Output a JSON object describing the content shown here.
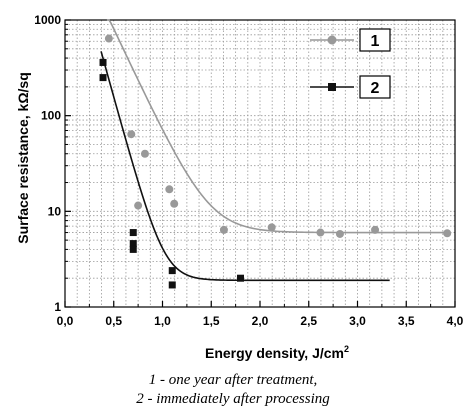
{
  "chart_data": {
    "type": "scatter",
    "xlabel_main": "Energy density, J/cm",
    "xlabel_sup": "2",
    "ylabel": "Surface  resistance, kΩ/sq",
    "xlim": [
      0.0,
      4.0
    ],
    "ylim": [
      1,
      1000
    ],
    "yscale": "log",
    "grid": true,
    "x_ticks": [
      "0,0",
      "0,5",
      "1,0",
      "1,5",
      "2,0",
      "2,5",
      "3,0",
      "3,5",
      "4,0"
    ],
    "y_ticks": [
      {
        "value": 1,
        "label": "1"
      },
      {
        "value": 10,
        "label": "10"
      },
      {
        "value": 100,
        "label": "100"
      },
      {
        "value": 1000,
        "label": "1000"
      }
    ],
    "legend_position": "top-right",
    "series": [
      {
        "name": "1",
        "marker": "circle",
        "color": "#999999",
        "points": [
          [
            0.45,
            640
          ],
          [
            0.68,
            64
          ],
          [
            0.75,
            11.5
          ],
          [
            0.82,
            40
          ],
          [
            1.07,
            17
          ],
          [
            1.12,
            12
          ],
          [
            1.63,
            6.4
          ],
          [
            2.12,
            6.8
          ],
          [
            2.62,
            6.0
          ],
          [
            2.82,
            5.8
          ],
          [
            3.18,
            6.4
          ],
          [
            3.92,
            5.9
          ]
        ],
        "fit_curve": {
          "x_start": 0.43,
          "x_end": 3.95,
          "asymptote": 6.0,
          "amplitude": 2800,
          "decay": 5.0,
          "x0": 0.25
        }
      },
      {
        "name": "2",
        "marker": "square",
        "color": "#111111",
        "points": [
          [
            0.39,
            360
          ],
          [
            0.39,
            250
          ],
          [
            0.7,
            6.0
          ],
          [
            0.7,
            4.6
          ],
          [
            0.7,
            4.0
          ],
          [
            1.1,
            2.4
          ],
          [
            1.1,
            1.7
          ],
          [
            1.8,
            2.0
          ]
        ],
        "fit_curve": {
          "x_start": 0.37,
          "x_end": 3.33,
          "asymptote": 1.9,
          "amplitude": 1300,
          "decay": 8.5,
          "x0": 0.25
        }
      }
    ]
  },
  "caption": {
    "line1": "1 - one year after treatment,",
    "line2": "2 - immediately after processing"
  }
}
